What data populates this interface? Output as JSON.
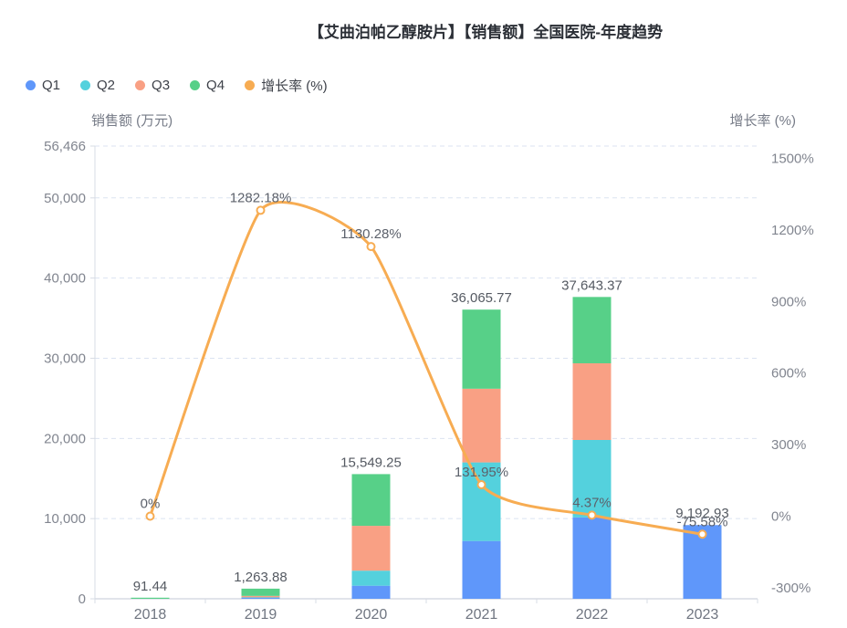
{
  "title": "【艾曲泊帕乙醇胺片】【销售额】全国医院-年度趋势",
  "chart_data": {
    "type": "bar+line",
    "categories": [
      "2018",
      "2019",
      "2020",
      "2021",
      "2022",
      "2023"
    ],
    "bar_stack_order": [
      "Q1",
      "Q2",
      "Q3",
      "Q4"
    ],
    "series": [
      {
        "name": "Q1",
        "type": "bar",
        "color": "#5f97fa",
        "values": [
          0,
          120,
          1630,
          7210,
          10150,
          9192.93
        ]
      },
      {
        "name": "Q2",
        "type": "bar",
        "color": "#54d1dd",
        "values": [
          0,
          60,
          1880,
          9800,
          9660,
          0
        ]
      },
      {
        "name": "Q3",
        "type": "bar",
        "color": "#f9a084",
        "values": [
          0,
          180,
          5590,
          9190,
          9560,
          0
        ]
      },
      {
        "name": "Q4",
        "type": "bar",
        "color": "#57d088",
        "values": [
          91.44,
          903.88,
          6449.25,
          9865.77,
          8273.37,
          0
        ]
      }
    ],
    "bar_totals": [
      91.44,
      1263.88,
      15549.25,
      36065.77,
      37643.37,
      9192.93
    ],
    "bar_total_labels": [
      "91.44",
      "1,263.88",
      "15,549.25",
      "36,065.77",
      "37,643.37",
      "9,192.93"
    ],
    "line_series": {
      "name": "增长率 (%)",
      "type": "line",
      "color": "#f7ac52",
      "values": [
        0,
        1282.18,
        1130.28,
        131.95,
        4.37,
        -75.58
      ],
      "labels": [
        "0%",
        "1282.18%",
        "1130.28%",
        "131.95%",
        "4.37%",
        "-75.58%"
      ]
    },
    "left_axis": {
      "name": "销售额 (万元)",
      "min": 0,
      "max": 56466,
      "tick_values": [
        0,
        10000,
        20000,
        30000,
        40000,
        50000,
        56466
      ],
      "tick_labels": [
        "0",
        "10,000",
        "20,000",
        "30,000",
        "40,000",
        "50,000",
        "56,466"
      ],
      "grid_values": [
        10000,
        20000,
        30000,
        40000,
        50000,
        56466
      ]
    },
    "right_axis": {
      "name": "增长率 (%)",
      "min": -300,
      "max": 1500,
      "tick_values": [
        -300,
        0,
        300,
        600,
        900,
        1200,
        1500
      ],
      "tick_labels": [
        "-300%",
        "0%",
        "300%",
        "600%",
        "900%",
        "1200%",
        "1500%"
      ]
    },
    "legend": [
      {
        "label": "Q1",
        "color": "#5f97fa"
      },
      {
        "label": "Q2",
        "color": "#54d1dd"
      },
      {
        "label": "Q3",
        "color": "#f9a084"
      },
      {
        "label": "Q4",
        "color": "#57d088"
      },
      {
        "label": "增长率 (%)",
        "color": "#f7ac52"
      }
    ],
    "grid_on": true,
    "legend_position": "top-left",
    "colors": {
      "grid_line": "#dbe3f1",
      "axis_line": "#d7dce4",
      "tick_text": "#81858f",
      "category_text": "#6f7580",
      "bar_label_text": "#555a62",
      "line_label_text": "#5c616b",
      "marker_fill": "#ffffff"
    }
  }
}
